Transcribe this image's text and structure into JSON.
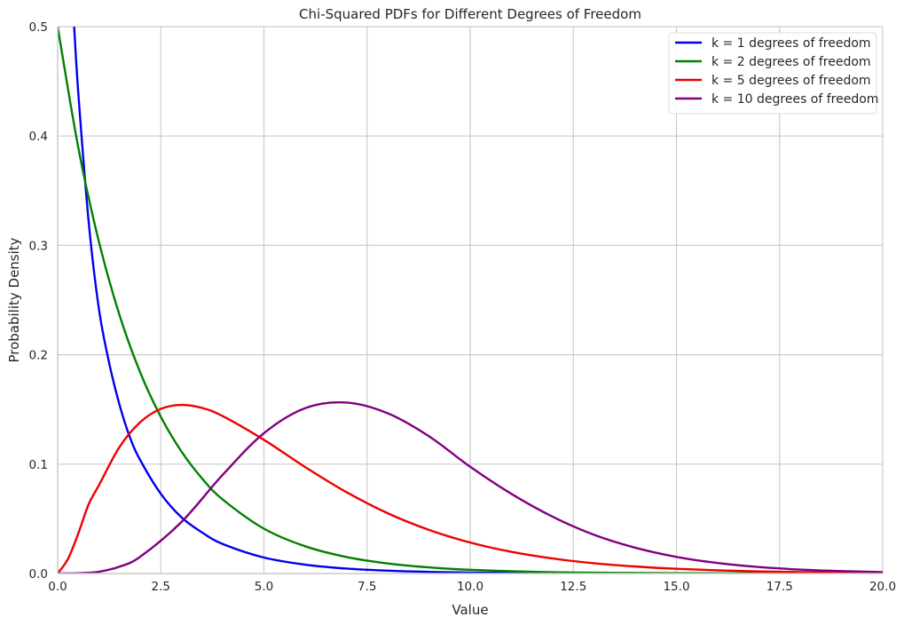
{
  "chart_data": {
    "type": "line",
    "title": "Chi-Squared PDFs for Different Degrees of Freedom",
    "xlabel": "Value",
    "ylabel": "Probability Density",
    "xlim": [
      0,
      20
    ],
    "ylim": [
      0,
      0.5
    ],
    "xticks": [
      "0.0",
      "2.5",
      "5.0",
      "7.5",
      "10.0",
      "12.5",
      "15.0",
      "17.5",
      "20.0"
    ],
    "yticks": [
      "0.0",
      "0.1",
      "0.2",
      "0.3",
      "0.4",
      "0.5"
    ],
    "grid": true,
    "legend_position": "top-right",
    "series": [
      {
        "name": "k = 1 degrees of freedom",
        "color": "#0000ee",
        "x": [
          0.4,
          0.5,
          0.75,
          1,
          1.25,
          1.5,
          1.75,
          2,
          2.5,
          3,
          3.5,
          4,
          5,
          6,
          7,
          8,
          9,
          10,
          12,
          14,
          16,
          18,
          20
        ],
        "y": [
          0.5,
          0.4394,
          0.3222,
          0.242,
          0.1922,
          0.1542,
          0.1247,
          0.1038,
          0.0729,
          0.0514,
          0.0375,
          0.027,
          0.0146,
          0.0081,
          0.0045,
          0.0026,
          0.0015,
          0.0009,
          0.0003,
          0.0001,
          0,
          0,
          0
        ]
      },
      {
        "name": "k = 2 degrees of freedom",
        "color": "#008000",
        "x": [
          0,
          0.5,
          1,
          1.5,
          2,
          2.5,
          3,
          3.5,
          4,
          5,
          6,
          7,
          8,
          9,
          10,
          12,
          14,
          16,
          18,
          20
        ],
        "y": [
          0.5,
          0.3894,
          0.3033,
          0.2362,
          0.1839,
          0.1433,
          0.1116,
          0.0869,
          0.0677,
          0.041,
          0.0249,
          0.0151,
          0.0092,
          0.0056,
          0.0034,
          0.0012,
          0.0005,
          0.0002,
          0.0001,
          0
        ]
      },
      {
        "name": "k = 5 degrees of freedom",
        "color": "#ee0000",
        "x": [
          0,
          0.25,
          0.5,
          0.75,
          1,
          1.5,
          2,
          2.5,
          3,
          3.5,
          4,
          5,
          6,
          7,
          8,
          9,
          10,
          11,
          12,
          13,
          14,
          15,
          16,
          17,
          18,
          19,
          20
        ],
        "y": [
          0,
          0.0133,
          0.0366,
          0.0632,
          0.0807,
          0.1157,
          0.1383,
          0.1505,
          0.1542,
          0.1514,
          0.1439,
          0.1222,
          0.0973,
          0.0744,
          0.0551,
          0.0399,
          0.0283,
          0.0198,
          0.0137,
          0.0094,
          0.0064,
          0.0043,
          0.0029,
          0.0019,
          0.0013,
          0.0008,
          0.0005
        ]
      },
      {
        "name": "k = 10 degrees of freedom",
        "color": "#800080",
        "x": [
          0,
          0.5,
          1,
          1.5,
          2,
          3,
          4,
          5,
          6,
          7,
          8,
          9,
          10,
          11,
          12,
          13,
          14,
          15,
          16,
          17,
          18,
          19,
          20
        ],
        "y": [
          0,
          0.0002,
          0.0016,
          0.0063,
          0.0153,
          0.0471,
          0.0902,
          0.1283,
          0.1512,
          0.1563,
          0.1465,
          0.1255,
          0.0976,
          0.0728,
          0.0519,
          0.0354,
          0.0236,
          0.0152,
          0.0096,
          0.0059,
          0.0036,
          0.0022,
          0.0013
        ]
      }
    ]
  }
}
